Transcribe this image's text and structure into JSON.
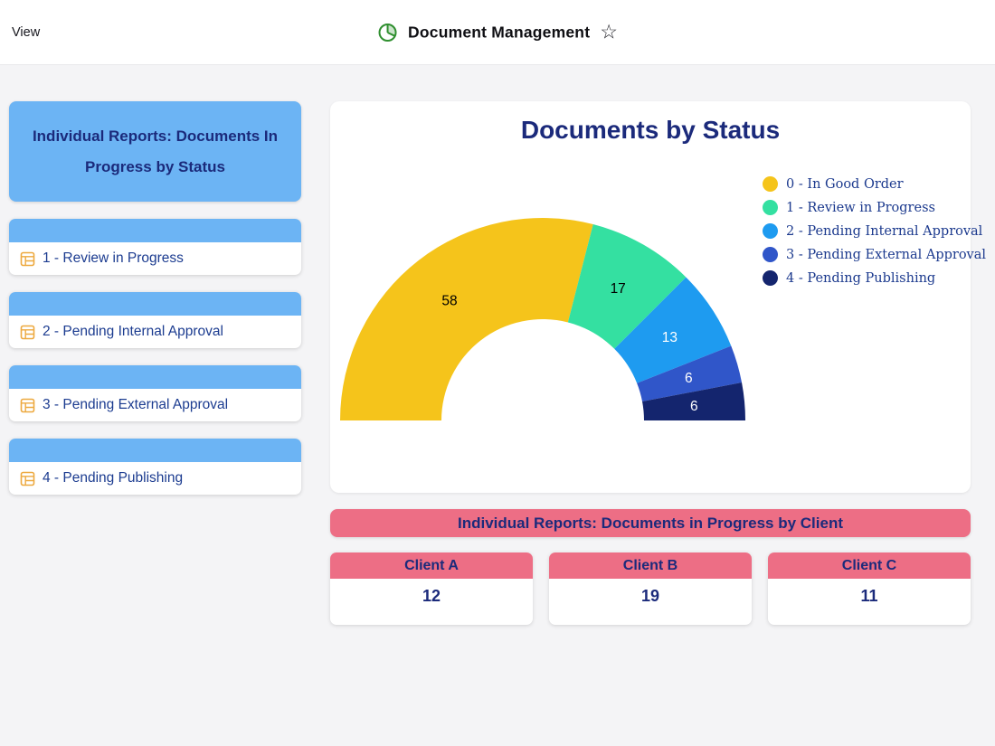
{
  "header": {
    "menu_view": "View",
    "title": "Document Management",
    "star_glyph": "☆"
  },
  "sidebar": {
    "title": "Individual Reports: Documents In Progress by Status",
    "items": [
      {
        "label": "1 - Review in Progress"
      },
      {
        "label": "2 - Pending Internal Approval"
      },
      {
        "label": "3 - Pending External Approval"
      },
      {
        "label": "4 - Pending Publishing"
      }
    ]
  },
  "chart_data": {
    "type": "pie",
    "variant": "half-donut",
    "title": "Documents by Status",
    "legend_position": "right",
    "total": 100,
    "slices": [
      {
        "label": "0 - In Good Order",
        "value": 58,
        "color": "#F5C41B",
        "label_color": "#000000"
      },
      {
        "label": "1 - Review in Progress",
        "value": 17,
        "color": "#34E0A1",
        "label_color": "#000000"
      },
      {
        "label": "2 - Pending Internal Approval",
        "value": 13,
        "color": "#1E9BF0",
        "label_color": "#FFFFFF"
      },
      {
        "label": "3 - Pending External Approval",
        "value": 6,
        "color": "#3056C9",
        "label_color": "#FFFFFF"
      },
      {
        "label": "4 - Pending Publishing",
        "value": 6,
        "color": "#14256E",
        "label_color": "#FFFFFF"
      }
    ]
  },
  "client_section": {
    "banner": "Individual Reports: Documents in Progress by Client",
    "cards": [
      {
        "label": "Client A",
        "value": "12"
      },
      {
        "label": "Client B",
        "value": "19"
      },
      {
        "label": "Client C",
        "value": "11"
      }
    ]
  },
  "colors": {
    "page_bg": "#f4f4f6",
    "accent_blue": "#6CB4F4",
    "navy_text": "#1B2A7B",
    "pink": "#ED6E85",
    "icon_green": "#2F8F2F",
    "icon_orange": "#EDA93F"
  }
}
